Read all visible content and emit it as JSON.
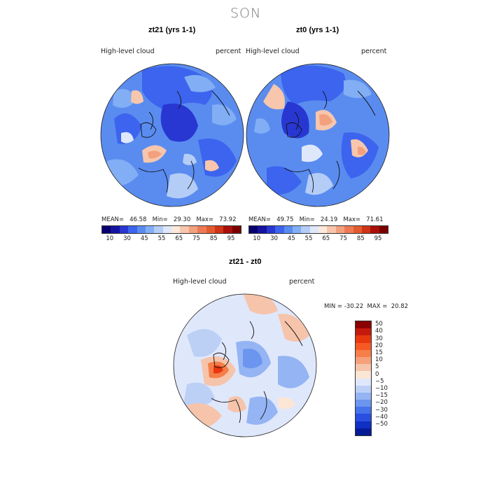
{
  "figure_title": "SON",
  "panels": [
    {
      "title": "zt21 (yrs 1-1)",
      "variable": "High-level cloud",
      "units": "percent",
      "stats": {
        "mean_label": "MEAN=",
        "mean": "46.58",
        "min_label": "Min=",
        "min": "29.30",
        "max_label": "Max=",
        "max": "73.92"
      }
    },
    {
      "title": "zt0 (yrs 1-1)",
      "variable": "High-level cloud",
      "units": "percent",
      "stats": {
        "mean_label": "MEAN=",
        "mean": "49.75",
        "min_label": "Min=",
        "min": "24.19",
        "max_label": "Max=",
        "max": "71.61"
      }
    }
  ],
  "diff_panel": {
    "title": "zt21 - zt0",
    "variable": "High-level cloud",
    "units": "percent",
    "minmax_text": "MIN = -30.22  MAX =  20.82"
  },
  "colorbar_top": {
    "labels": [
      "10",
      "30",
      "45",
      "55",
      "65",
      "75",
      "85",
      "95"
    ],
    "colors": [
      "#08006e",
      "#1414a0",
      "#2837d2",
      "#3c64ee",
      "#5a8cf0",
      "#82aef5",
      "#b4cdf7",
      "#dfe8fb",
      "#fbe9dc",
      "#f7c6ac",
      "#f2a07e",
      "#ed7a55",
      "#e45a30",
      "#cf3418",
      "#a9100a",
      "#7a0000"
    ]
  },
  "colorbar_diff": {
    "labels": [
      "50",
      "40",
      "30",
      "20",
      "15",
      "10",
      "5",
      "0",
      "-5",
      "-10",
      "-15",
      "-20",
      "-30",
      "-40",
      "-50"
    ],
    "colors": [
      "#8b0000",
      "#c41a0c",
      "#e8380f",
      "#f55a24",
      "#f57e49",
      "#f5a07a",
      "#f6c4aa",
      "#fbe6d5",
      "#dfe7fb",
      "#bcd0f6",
      "#94b4f3",
      "#6c95ef",
      "#4672ea",
      "#2a4ee0",
      "#1030c4",
      "#071a96"
    ]
  },
  "map_labels": {
    "top_left": "zt21 high-level cloud polar map",
    "top_right": "zt0 high-level cloud polar map",
    "bottom": "zt21 minus zt0 difference polar map"
  }
}
